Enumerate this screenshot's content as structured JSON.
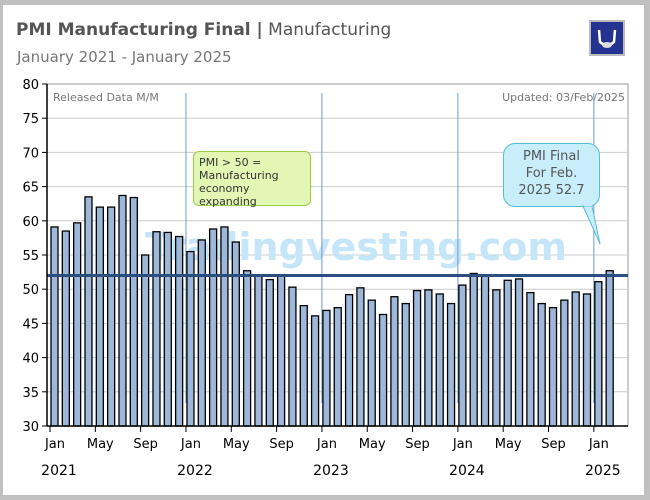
{
  "header": {
    "title_bold": "PMI Manufacturing Final |",
    "title_rest": "Manufacturing",
    "subtitle": "January 2021 - January 2025"
  },
  "logo": {
    "icon": "bull-horns-logo",
    "color": "#24338f"
  },
  "chart_data": {
    "type": "bar",
    "title": "PMI Manufacturing Final | Manufacturing",
    "subtitle": "January 2021 - January 2025",
    "top_left_label": "Released Data M/M",
    "top_right_label": "Updated: 03/Feb/2025",
    "watermark": "Tradingvesting.com",
    "ylim": [
      30,
      80
    ],
    "yticks": [
      30,
      35,
      40,
      45,
      50,
      55,
      60,
      65,
      70,
      75,
      80
    ],
    "grid": true,
    "x_tick_labels": [
      "Jan",
      "May",
      "Sep",
      "Jan",
      "May",
      "Sep",
      "Jan",
      "May",
      "Sep",
      "Jan",
      "May",
      "Sep",
      "Jan"
    ],
    "year_labels": [
      "2021",
      "2022",
      "2023",
      "2024",
      "2025"
    ],
    "categories": [
      "2021-01",
      "2021-02",
      "2021-03",
      "2021-04",
      "2021-05",
      "2021-06",
      "2021-07",
      "2021-08",
      "2021-09",
      "2021-10",
      "2021-11",
      "2021-12",
      "2022-01",
      "2022-02",
      "2022-03",
      "2022-04",
      "2022-05",
      "2022-06",
      "2022-07",
      "2022-08",
      "2022-09",
      "2022-10",
      "2022-11",
      "2022-12",
      "2023-01",
      "2023-02",
      "2023-03",
      "2023-04",
      "2023-05",
      "2023-06",
      "2023-07",
      "2023-08",
      "2023-09",
      "2023-10",
      "2023-11",
      "2023-12",
      "2024-01",
      "2024-02",
      "2024-03",
      "2024-04",
      "2024-05",
      "2024-06",
      "2024-07",
      "2024-08",
      "2024-09",
      "2024-10",
      "2024-11",
      "2024-12",
      "2025-01",
      "2025-02"
    ],
    "values": [
      59.1,
      58.5,
      59.7,
      63.5,
      62.0,
      62.0,
      63.7,
      63.4,
      55.0,
      58.4,
      58.3,
      57.7,
      55.5,
      57.2,
      58.8,
      59.1,
      56.9,
      52.7,
      52.1,
      51.4,
      51.9,
      50.3,
      47.6,
      46.1,
      46.9,
      47.3,
      49.2,
      50.2,
      48.4,
      46.3,
      48.9,
      47.9,
      49.8,
      49.9,
      49.3,
      47.9,
      50.6,
      52.3,
      52.0,
      49.9,
      51.3,
      51.5,
      49.5,
      47.9,
      47.3,
      48.4,
      49.6,
      49.3,
      51.1,
      52.7
    ],
    "reference_line": 52.0,
    "bar_color": "#9db8d9",
    "line_color": "#2b4e80",
    "annotations": {
      "threshold_note": [
        "PMI > 50 =",
        "Manufacturing",
        "economy expanding"
      ],
      "latest_callout": [
        "PMI Final",
        "For Feb.",
        "2025 52.7"
      ]
    }
  }
}
